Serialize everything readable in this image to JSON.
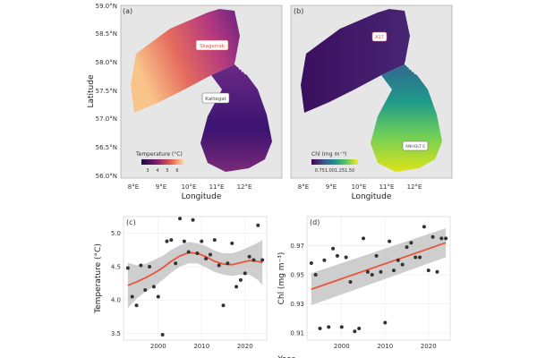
{
  "maps": {
    "latitude_ticks": [
      "59.0°N",
      "58.5°N",
      "58.0°N",
      "57.5°N",
      "57.0°N",
      "56.5°N",
      "56.0°N"
    ],
    "longitude_ticks": [
      "8°E",
      "9°E",
      "10°E",
      "11°E",
      "12°E"
    ],
    "ylabel": "Latitude",
    "xlabel": "Longitude",
    "panel_a": {
      "tag": "(a)",
      "legend_title": "Temperature (°C)",
      "legend_ticks": [
        "3",
        "4",
        "5",
        "6"
      ],
      "labels": [
        "Skagerrak",
        "Kattegat"
      ]
    },
    "panel_b": {
      "tag": "(b)",
      "legend_title": "Chl (mg m⁻³)",
      "legend_ticks": "0.751.001.251.50",
      "labels": [
        "A17",
        "ANHOLT E"
      ]
    }
  },
  "chart_data": [
    {
      "panel": "(c)",
      "type": "scatter",
      "xlabel": "Year",
      "ylabel": "Temperature (°C)",
      "xlim": [
        1992,
        2025
      ],
      "ylim": [
        3.4,
        5.25
      ],
      "xticks": [
        2000,
        2010,
        2020
      ],
      "yticks": [
        3.5,
        4.0,
        4.5,
        5.0
      ],
      "grid": true,
      "points": [
        {
          "x": 1993,
          "y": 4.48
        },
        {
          "x": 1994,
          "y": 4.05
        },
        {
          "x": 1995,
          "y": 3.92
        },
        {
          "x": 1996,
          "y": 4.52
        },
        {
          "x": 1997,
          "y": 4.15
        },
        {
          "x": 1998,
          "y": 4.5
        },
        {
          "x": 1999,
          "y": 4.2
        },
        {
          "x": 2000,
          "y": 4.05
        },
        {
          "x": 2001,
          "y": 3.48
        },
        {
          "x": 2002,
          "y": 4.88
        },
        {
          "x": 2003,
          "y": 4.9
        },
        {
          "x": 2004,
          "y": 4.55
        },
        {
          "x": 2005,
          "y": 5.22
        },
        {
          "x": 2006,
          "y": 4.88
        },
        {
          "x": 2007,
          "y": 4.72
        },
        {
          "x": 2008,
          "y": 5.2
        },
        {
          "x": 2009,
          "y": 4.7
        },
        {
          "x": 2010,
          "y": 4.88
        },
        {
          "x": 2011,
          "y": 4.62
        },
        {
          "x": 2012,
          "y": 4.68
        },
        {
          "x": 2013,
          "y": 4.9
        },
        {
          "x": 2014,
          "y": 4.52
        },
        {
          "x": 2015,
          "y": 3.92
        },
        {
          "x": 2016,
          "y": 4.55
        },
        {
          "x": 2017,
          "y": 4.85
        },
        {
          "x": 2018,
          "y": 4.2
        },
        {
          "x": 2019,
          "y": 4.3
        },
        {
          "x": 2020,
          "y": 4.4
        },
        {
          "x": 2021,
          "y": 4.65
        },
        {
          "x": 2022,
          "y": 4.6
        },
        {
          "x": 2023,
          "y": 5.12
        },
        {
          "x": 2024,
          "y": 4.6
        }
      ],
      "trend": {
        "x": [
          1993,
          1995,
          1997,
          1999,
          2001,
          2003,
          2005,
          2007,
          2009,
          2011,
          2013,
          2015,
          2017,
          2019,
          2021,
          2023,
          2024
        ],
        "y": [
          4.22,
          4.27,
          4.33,
          4.4,
          4.48,
          4.58,
          4.66,
          4.71,
          4.7,
          4.65,
          4.58,
          4.54,
          4.53,
          4.56,
          4.59,
          4.58,
          4.56
        ],
        "lower": [
          3.88,
          4.02,
          4.12,
          4.2,
          4.3,
          4.41,
          4.5,
          4.55,
          4.55,
          4.49,
          4.42,
          4.38,
          4.36,
          4.38,
          4.38,
          4.3,
          4.22
        ],
        "upper": [
          4.56,
          4.52,
          4.54,
          4.6,
          4.66,
          4.75,
          4.82,
          4.87,
          4.85,
          4.81,
          4.74,
          4.7,
          4.7,
          4.74,
          4.8,
          4.86,
          4.9
        ]
      },
      "colors": {
        "points": "#333333",
        "trend": "#e8553a",
        "band": "#bdbdbd"
      }
    },
    {
      "panel": "(d)",
      "type": "scatter",
      "xlabel": "Year",
      "ylabel": "Chl (mg m⁻³)",
      "xlim": [
        1992,
        2025
      ],
      "ylim": [
        0.905,
        0.99
      ],
      "xticks": [
        2000,
        2010,
        2020
      ],
      "yticks": [
        0.91,
        0.93,
        0.95,
        0.97
      ],
      "grid": true,
      "points": [
        {
          "x": 1993,
          "y": 0.958
        },
        {
          "x": 1994,
          "y": 0.95
        },
        {
          "x": 1995,
          "y": 0.913
        },
        {
          "x": 1996,
          "y": 0.96
        },
        {
          "x": 1997,
          "y": 0.914
        },
        {
          "x": 1998,
          "y": 0.968
        },
        {
          "x": 1999,
          "y": 0.963
        },
        {
          "x": 2000,
          "y": 0.914
        },
        {
          "x": 2001,
          "y": 0.962
        },
        {
          "x": 2002,
          "y": 0.945
        },
        {
          "x": 2003,
          "y": 0.911
        },
        {
          "x": 2004,
          "y": 0.913
        },
        {
          "x": 2005,
          "y": 0.975
        },
        {
          "x": 2006,
          "y": 0.952
        },
        {
          "x": 2007,
          "y": 0.95
        },
        {
          "x": 2008,
          "y": 0.963
        },
        {
          "x": 2009,
          "y": 0.952
        },
        {
          "x": 2010,
          "y": 0.917
        },
        {
          "x": 2011,
          "y": 0.973
        },
        {
          "x": 2012,
          "y": 0.953
        },
        {
          "x": 2013,
          "y": 0.96
        },
        {
          "x": 2014,
          "y": 0.957
        },
        {
          "x": 2015,
          "y": 0.969
        },
        {
          "x": 2016,
          "y": 0.972
        },
        {
          "x": 2017,
          "y": 0.962
        },
        {
          "x": 2018,
          "y": 0.962
        },
        {
          "x": 2019,
          "y": 0.983
        },
        {
          "x": 2020,
          "y": 0.953
        },
        {
          "x": 2021,
          "y": 0.976
        },
        {
          "x": 2022,
          "y": 0.952
        },
        {
          "x": 2023,
          "y": 0.975
        },
        {
          "x": 2024,
          "y": 0.975
        }
      ],
      "trend": {
        "x": [
          1993,
          2024
        ],
        "y": [
          0.94,
          0.972
        ],
        "lower": [
          0.929,
          0.962
        ],
        "upper": [
          0.951,
          0.982
        ]
      },
      "colors": {
        "points": "#333333",
        "trend": "#e8553a",
        "band": "#bdbdbd"
      }
    }
  ]
}
